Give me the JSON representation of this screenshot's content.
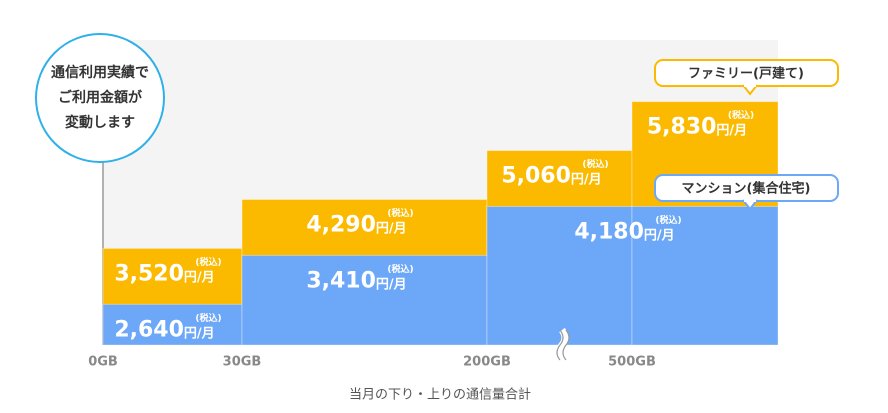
{
  "chart_data": {
    "type": "step",
    "annotation": [
      "通信利用実績で",
      "ご利用金額が",
      "変動します"
    ],
    "x_label": "当月の下り・上りの通信量合計",
    "categories": [
      "0GB",
      "30GB",
      "200GB",
      "500GB"
    ],
    "unit": "円/月",
    "tax_note": "(税込)",
    "ylim": [
      2000,
      6800
    ],
    "series": [
      {
        "name": "ファミリー(戸建て)",
        "color": "#fbb900",
        "values": [
          3520,
          4290,
          5060,
          5830
        ],
        "value_labels": [
          "3,520",
          "4,290",
          "5,060",
          "5,830"
        ]
      },
      {
        "name": "マンション(集合住宅)",
        "color": "#6da7f7",
        "values": [
          2640,
          3410,
          4180,
          4180
        ],
        "value_labels": [
          "2,640",
          "3,410",
          "4,180",
          null
        ]
      }
    ]
  }
}
